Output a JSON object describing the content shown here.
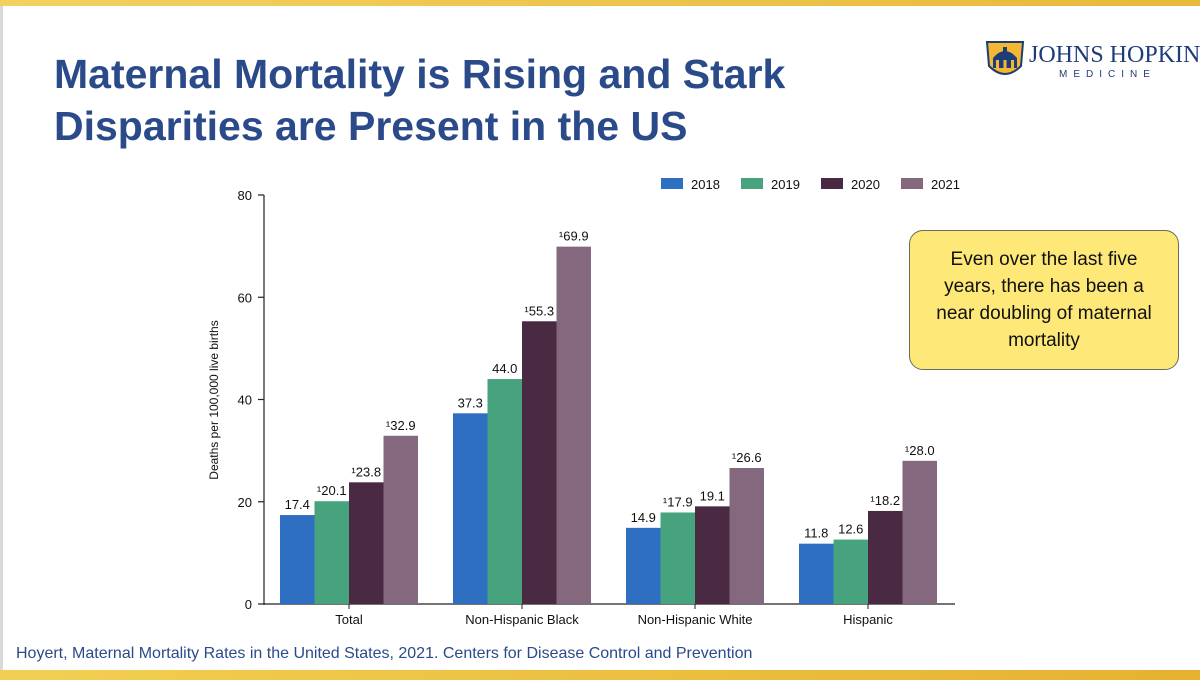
{
  "slide": {
    "title_line1": "Maternal Mortality is Rising and Stark",
    "title_line2": "Disparities are Present in the US",
    "logo": {
      "name": "JOHNS HOPKINS",
      "subname": "MEDICINE"
    },
    "callout": "Even over the last five years, there has been a near doubling of maternal mortality",
    "citation": "Hoyert, Maternal Mortality Rates in the United States, 2021. Centers for Disease Control and Prevention"
  },
  "chart_data": {
    "type": "bar",
    "title": "",
    "xlabel": "",
    "ylabel": "Deaths per 100,000 live births",
    "ylim": [
      0,
      80
    ],
    "yticks": [
      0,
      20,
      40,
      60,
      80
    ],
    "categories": [
      "Total",
      "Non-Hispanic Black",
      "Non-Hispanic White",
      "Hispanic"
    ],
    "series": [
      {
        "name": "2018",
        "color": "#2e6fc1",
        "values": [
          17.4,
          37.3,
          14.9,
          11.8
        ],
        "labels": [
          "17.4",
          "37.3",
          "14.9",
          "11.8"
        ]
      },
      {
        "name": "2019",
        "color": "#46a37e",
        "values": [
          20.1,
          44.0,
          17.9,
          12.6
        ],
        "labels": [
          "¹20.1",
          "44.0",
          "¹17.9",
          "12.6"
        ]
      },
      {
        "name": "2020",
        "color": "#4a2942",
        "values": [
          23.8,
          55.3,
          19.1,
          18.2
        ],
        "labels": [
          "¹23.8",
          "¹55.3",
          "19.1",
          "¹18.2"
        ]
      },
      {
        "name": "2021",
        "color": "#83687e",
        "values": [
          32.9,
          69.9,
          26.6,
          28.0
        ],
        "labels": [
          "¹32.9",
          "¹69.9",
          "¹26.6",
          "¹28.0"
        ]
      }
    ],
    "legend_position": "top-right",
    "grid": false
  }
}
